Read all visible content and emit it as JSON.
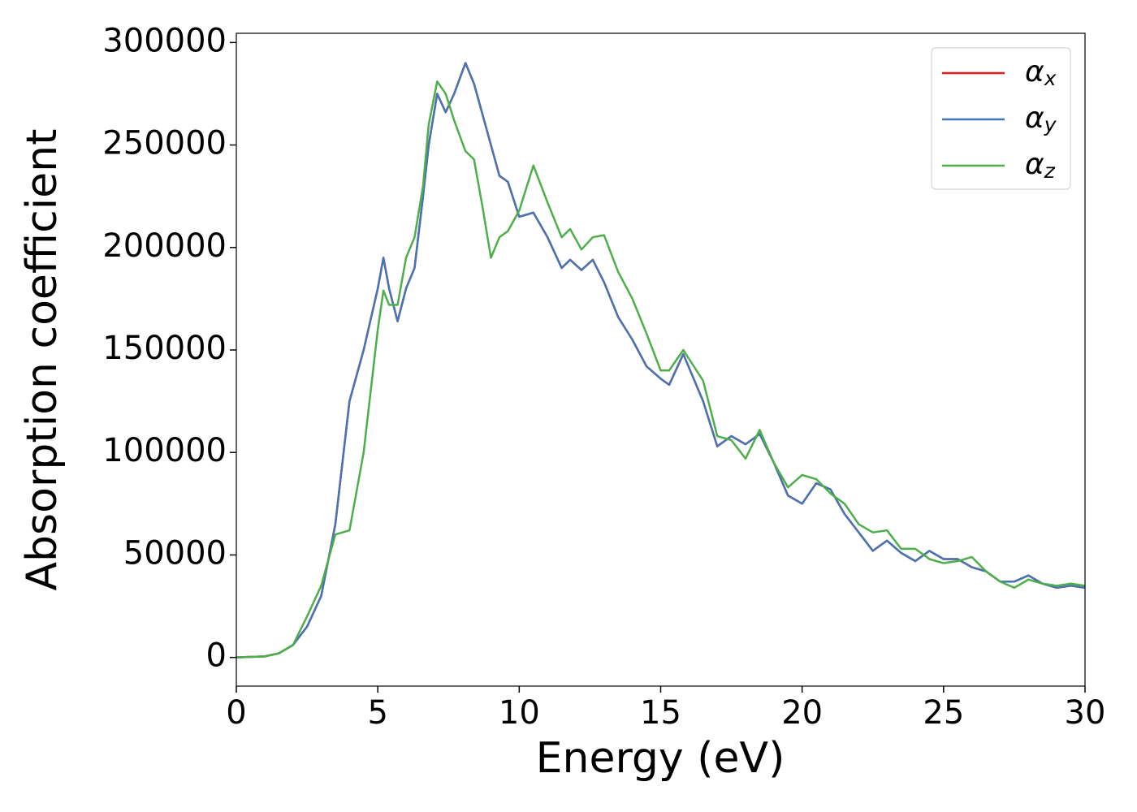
{
  "chart_data": {
    "type": "line",
    "xlabel": "Energy (eV)",
    "ylabel": "Absorption coefficient",
    "x": [
      0,
      1,
      1.5,
      2,
      2.5,
      3,
      3.5,
      4,
      4.5,
      5,
      5.2,
      5.4,
      5.7,
      6,
      6.3,
      6.6,
      6.8,
      7.1,
      7.4,
      7.7,
      8.1,
      8.4,
      8.7,
      9,
      9.3,
      9.6,
      10,
      10.5,
      11,
      11.5,
      11.8,
      12.2,
      12.6,
      13,
      13.5,
      14,
      14.5,
      15,
      15.3,
      15.8,
      16.5,
      17,
      17.5,
      18,
      18.5,
      19,
      19.5,
      20,
      20.5,
      21,
      21.5,
      22,
      22.5,
      23,
      23.5,
      24,
      24.5,
      25,
      25.5,
      26,
      26.5,
      27,
      27.5,
      28,
      28.5,
      29,
      29.5,
      30
    ],
    "series": [
      {
        "name": "αx",
        "color": "#e41a1c",
        "values": [
          0,
          500,
          2000,
          6000,
          15000,
          30000,
          65000,
          125000,
          150000,
          180000,
          195000,
          180000,
          164000,
          180000,
          190000,
          225000,
          250000,
          275000,
          266000,
          275000,
          290000,
          280000,
          265000,
          250000,
          235000,
          232000,
          215000,
          217000,
          205000,
          190000,
          194000,
          189000,
          194000,
          183000,
          166000,
          155000,
          142000,
          136000,
          133000,
          148000,
          125000,
          103000,
          108000,
          104000,
          109000,
          95000,
          79000,
          75000,
          85000,
          82000,
          70000,
          61000,
          52000,
          57000,
          51000,
          47000,
          52000,
          48000,
          48000,
          44000,
          42000,
          37000,
          37000,
          40000,
          36000,
          34000,
          35000,
          34000
        ]
      },
      {
        "name": "αy",
        "color": "#4575b4",
        "values": [
          0,
          500,
          2000,
          6000,
          15000,
          30000,
          65000,
          125000,
          150000,
          180000,
          195000,
          180000,
          164000,
          180000,
          190000,
          225000,
          250000,
          275000,
          266000,
          275000,
          290000,
          280000,
          265000,
          250000,
          235000,
          232000,
          215000,
          217000,
          205000,
          190000,
          194000,
          189000,
          194000,
          183000,
          166000,
          155000,
          142000,
          136000,
          133000,
          148000,
          125000,
          103000,
          108000,
          104000,
          109000,
          95000,
          79000,
          75000,
          85000,
          82000,
          70000,
          61000,
          52000,
          57000,
          51000,
          47000,
          52000,
          48000,
          48000,
          44000,
          42000,
          37000,
          37000,
          40000,
          36000,
          34000,
          35000,
          34000
        ]
      },
      {
        "name": "αz",
        "color": "#4daf4a",
        "values": [
          0,
          500,
          2000,
          6000,
          20000,
          35000,
          60000,
          62000,
          100000,
          160000,
          179000,
          172000,
          172000,
          195000,
          205000,
          230000,
          260000,
          281000,
          275000,
          262000,
          247000,
          243000,
          220000,
          195000,
          205000,
          208000,
          218000,
          240000,
          222000,
          205000,
          209000,
          199000,
          205000,
          206000,
          188000,
          175000,
          158000,
          140000,
          140000,
          150000,
          135000,
          108000,
          106000,
          97000,
          111000,
          95000,
          83000,
          89000,
          87000,
          80000,
          75000,
          65000,
          61000,
          62000,
          53000,
          53000,
          48000,
          46000,
          47000,
          49000,
          42000,
          37000,
          34000,
          38000,
          36000,
          35000,
          36000,
          35000
        ]
      }
    ],
    "xlim": [
      0,
      30
    ],
    "xticks": [
      0,
      5,
      10,
      15,
      20,
      25,
      30
    ],
    "ylim": [
      -14000,
      304500
    ],
    "yticks": [
      0,
      50000,
      100000,
      150000,
      200000,
      250000,
      300000
    ],
    "grid": false,
    "legend": "upper right"
  }
}
